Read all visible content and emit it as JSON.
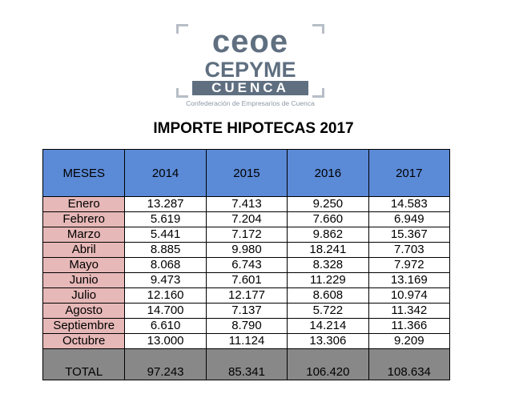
{
  "logo": {
    "line1": "ceoe",
    "line2": "CEPYME",
    "line3": "CUENCA",
    "tagline": "Confederación de Empresarios de Cuenca"
  },
  "title": "IMPORTE HIPOTECAS 2017",
  "table": {
    "headers": [
      "MESES",
      "2014",
      "2015",
      "2016",
      "2017"
    ],
    "rows": [
      [
        "Enero",
        "13.287",
        "7.413",
        "9.250",
        "14.583"
      ],
      [
        "Febrero",
        "5.619",
        "7.204",
        "7.660",
        "6.949"
      ],
      [
        "Marzo",
        "5.441",
        "7.172",
        "9.862",
        "15.367"
      ],
      [
        "Abril",
        "8.885",
        "9.980",
        "18.241",
        "7.703"
      ],
      [
        "Mayo",
        "8.068",
        "6.743",
        "8.328",
        "7.972"
      ],
      [
        "Junio",
        "9.473",
        "7.601",
        "11.229",
        "13.169"
      ],
      [
        "Julio",
        "12.160",
        "12.177",
        "8.608",
        "10.974"
      ],
      [
        "Agosto",
        "14.700",
        "7.137",
        "5.722",
        "11.342"
      ],
      [
        "Septiembre",
        "6.610",
        "8.790",
        "14.214",
        "11.366"
      ],
      [
        "Octubre",
        "13.000",
        "11.124",
        "13.306",
        "9.209"
      ]
    ],
    "total": [
      "TOTAL",
      "97.243",
      "85.341",
      "106.420",
      "108.634"
    ]
  },
  "colors": {
    "header_bg": "#5b8ad6",
    "month_bg": "#e6b8b7",
    "total_bg": "#888888",
    "logo": "#5f6f80"
  }
}
